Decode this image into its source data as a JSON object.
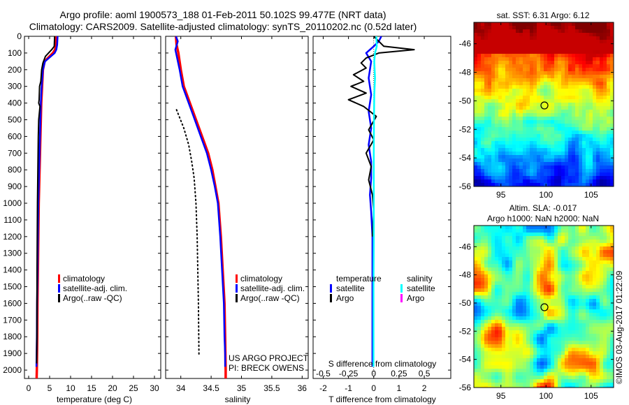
{
  "header": {
    "line1": "Argo profile: aoml 1900573_188 01-Feb-2011 50.102S 99.477E (NRT data)",
    "line2": "Climatology: CARS2009. Satellite-adjusted climatology: synTS_20110202.nc (0.52d later)"
  },
  "colors": {
    "climatology": "#ff0000",
    "satellite": "#0000ff",
    "argo": "#000000",
    "salinity_satellite": "#00ffff",
    "salinity_argo": "#ff00ff"
  },
  "depth_ticks": [
    "0",
    "100",
    "200",
    "300",
    "400",
    "500",
    "600",
    "700",
    "800",
    "900",
    "1000",
    "1100",
    "1200",
    "1300",
    "1400",
    "1500",
    "1600",
    "1700",
    "1800",
    "1900",
    "2000"
  ],
  "legend_profile": {
    "climatology": "climatology",
    "satellite": "satellite-adj. clim.",
    "argo": "Argo(..raw -QC)"
  },
  "legend_diff": {
    "temp_header": "temperature",
    "sal_header": "salinity",
    "satellite": "satellite",
    "argo": "Argo"
  },
  "project": {
    "line1": "US ARGO PROJECT",
    "line2": "PI: BRECK OWENS"
  },
  "map_sst": {
    "title": "sat. SST: 6.31 Argo: 6.12"
  },
  "map_sla": {
    "title1": "Altim. SLA: -0.017",
    "title2": "Argo h1000: NaN h2000: NaN"
  },
  "map_yticks": [
    "-46",
    "-48",
    "-50",
    "-52",
    "-54",
    "-56"
  ],
  "map_xticks": [
    "95",
    "100",
    "105"
  ],
  "credit": "©IMOS 03-Aug-2017 01:22:09",
  "chart_data": [
    {
      "type": "line",
      "name": "temperature",
      "xlabel": "temperature (deg C)",
      "xlim": [
        -1,
        31.5
      ],
      "ylim": [
        2050,
        0
      ],
      "xticks": [
        "0",
        "5",
        "10",
        "15",
        "20",
        "25",
        "30"
      ],
      "xtick_values": [
        0,
        5,
        10,
        15,
        20,
        25,
        30
      ],
      "series": [
        {
          "name": "climatology",
          "x": [
            6.6,
            6.5,
            6.3,
            5.8,
            3.8,
            3.4,
            3.2,
            3.0,
            2.9,
            2.8,
            2.7,
            2.6,
            2.5,
            2.4,
            2.3,
            2.2,
            2.1,
            2.05,
            2.0,
            1.95,
            1.9
          ],
          "y": [
            0,
            50,
            80,
            100,
            150,
            200,
            300,
            400,
            500,
            600,
            700,
            800,
            900,
            1000,
            1200,
            1400,
            1600,
            1800,
            1900,
            2000,
            2050
          ]
        },
        {
          "name": "satellite-adj. clim.",
          "x": [
            6.9,
            6.8,
            6.6,
            6.2,
            3.9,
            3.4,
            3.1,
            2.9,
            2.8,
            2.7,
            2.6,
            2.5,
            2.4,
            2.3,
            2.2,
            2.1,
            2.0,
            1.95,
            1.9,
            1.85
          ],
          "y": [
            0,
            50,
            80,
            100,
            150,
            200,
            300,
            400,
            500,
            600,
            700,
            800,
            900,
            1000,
            1200,
            1400,
            1600,
            1800,
            1900,
            1980
          ]
        },
        {
          "name": "Argo(..raw -QC)",
          "x": [
            6.2,
            6.1,
            5.5,
            4.0,
            3.4,
            3.1,
            2.9,
            2.6,
            2.5,
            2.4,
            2.7,
            2.4,
            2.3,
            2.2,
            2.1,
            2.0,
            1.95,
            1.9
          ],
          "y": [
            0,
            60,
            80,
            120,
            160,
            200,
            270,
            300,
            380,
            400,
            420,
            500,
            600,
            800,
            1000,
            1400,
            1800,
            1960
          ]
        }
      ]
    },
    {
      "type": "line",
      "name": "salinity",
      "xlabel": "salinity",
      "xlim": [
        33.75,
        36.1
      ],
      "ylim": [
        2050,
        0
      ],
      "xticks": [
        "34",
        "34.5",
        "35",
        "35.5",
        "36"
      ],
      "xtick_values": [
        34,
        34.5,
        35,
        35.5,
        36
      ],
      "series": [
        {
          "name": "climatology",
          "x": [
            33.92,
            33.93,
            33.96,
            34.0,
            34.05,
            34.15,
            34.25,
            34.35,
            34.45,
            34.52,
            34.57,
            34.62,
            34.66,
            34.69,
            34.72,
            34.73,
            34.74,
            34.74
          ],
          "y": [
            0,
            50,
            100,
            200,
            300,
            400,
            500,
            600,
            700,
            800,
            900,
            1000,
            1200,
            1400,
            1600,
            1800,
            2000,
            2050
          ]
        },
        {
          "name": "satellite-adj. clim.",
          "x": [
            33.92,
            33.95,
            33.91,
            33.98,
            34.03,
            34.13,
            34.23,
            34.33,
            34.43,
            34.5,
            34.56,
            34.61,
            34.65,
            34.68,
            34.71,
            34.72,
            34.73,
            34.73
          ],
          "y": [
            0,
            30,
            80,
            200,
            300,
            400,
            500,
            600,
            700,
            800,
            900,
            1000,
            1200,
            1400,
            1600,
            1800,
            1900,
            1980
          ]
        },
        {
          "name": "Argo(..raw -QC)",
          "x": [
            33.93,
            34.05,
            34.13,
            34.18,
            34.22,
            34.25,
            34.27,
            34.28,
            34.29,
            34.3
          ],
          "y": [
            440,
            550,
            650,
            750,
            850,
            1000,
            1200,
            1400,
            1600,
            1920
          ]
        }
      ]
    },
    {
      "type": "line",
      "name": "difference from climatology",
      "xlabel": "T difference from climatology",
      "xlabel_top": "S difference from climatology",
      "xlim": [
        -2.4,
        3.05
      ],
      "ylim": [
        2050,
        0
      ],
      "xticks": [
        "-2",
        "-1",
        "0",
        "1",
        "2"
      ],
      "xtick_values": [
        -2,
        -1,
        0,
        1,
        2
      ],
      "xticks_s": [
        "-0.5",
        "-0.25",
        "0",
        "0.25",
        "0.5"
      ],
      "series": [
        {
          "name": "temperature satellite",
          "x": [
            0.3,
            0.2,
            0.0,
            -0.3,
            -0.1,
            -0.2,
            -0.1,
            -0.2,
            -0.1,
            -0.2,
            -0.1,
            -0.1,
            -0.15,
            -0.1,
            -0.05,
            -0.05,
            -0.05,
            -0.05,
            -0.05,
            -0.05
          ],
          "y": [
            0,
            30,
            60,
            100,
            150,
            250,
            350,
            450,
            550,
            650,
            750,
            850,
            950,
            1050,
            1200,
            1400,
            1600,
            1800,
            1950,
            1980
          ]
        },
        {
          "name": "temperature Argo",
          "x": [
            0.0,
            0.4,
            1.6,
            0.2,
            -0.3,
            -0.5,
            -0.3,
            -0.8,
            -0.4,
            -0.9,
            -0.3,
            -1.0,
            -0.4,
            0.1,
            -0.2,
            0.0,
            -0.3,
            -0.1,
            -0.2,
            -0.05,
            0.0,
            -0.05
          ],
          "y": [
            0,
            60,
            80,
            100,
            130,
            160,
            190,
            230,
            270,
            300,
            340,
            380,
            420,
            480,
            560,
            620,
            700,
            780,
            860,
            950,
            1050,
            1200
          ]
        },
        {
          "name": "salinity satellite",
          "x": [
            0.1,
            0.12,
            0.05,
            0.02,
            0.05,
            0.02,
            0.01,
            0.0,
            0.0,
            0.0,
            -0.01,
            -0.01,
            -0.01
          ],
          "y": [
            0,
            60,
            100,
            150,
            250,
            350,
            500,
            700,
            900,
            1200,
            1500,
            1800,
            1980
          ]
        }
      ]
    }
  ]
}
